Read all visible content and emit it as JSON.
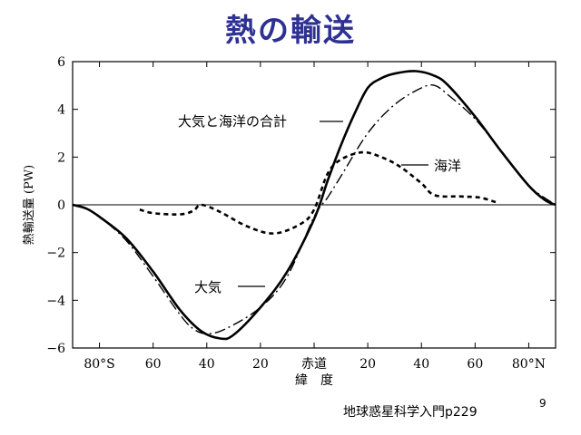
{
  "slide": {
    "title": "熱の輸送",
    "source": "地球惑星科学入門p229",
    "page_number": "9"
  },
  "chart_data": {
    "type": "line",
    "xlabel": "緯　度",
    "ylabel": "熱輸送量 (PW)",
    "xlim": [
      -90,
      90
    ],
    "ylim": [
      -6,
      6
    ],
    "x_ticks": [
      {
        "value": -80,
        "label": "80°S"
      },
      {
        "value": -60,
        "label": "60"
      },
      {
        "value": -40,
        "label": "40"
      },
      {
        "value": -20,
        "label": "20"
      },
      {
        "value": 0,
        "label": "赤道"
      },
      {
        "value": 20,
        "label": "20"
      },
      {
        "value": 40,
        "label": "40"
      },
      {
        "value": 60,
        "label": "60"
      },
      {
        "value": 80,
        "label": "80°N"
      }
    ],
    "y_ticks": [
      {
        "value": -6,
        "label": "−6"
      },
      {
        "value": -4,
        "label": "−4"
      },
      {
        "value": -2,
        "label": "−2"
      },
      {
        "value": 0,
        "label": "0"
      },
      {
        "value": 2,
        "label": "2"
      },
      {
        "value": 4,
        "label": "4"
      },
      {
        "value": 6,
        "label": "6"
      }
    ],
    "zero_line": true,
    "series": [
      {
        "name": "大気と海洋の合計",
        "style": "solid",
        "color": "#000000",
        "points": [
          [
            -90,
            0
          ],
          [
            -85,
            -0.15
          ],
          [
            -80,
            -0.5
          ],
          [
            -70,
            -1.4
          ],
          [
            -60,
            -2.8
          ],
          [
            -50,
            -4.4
          ],
          [
            -42,
            -5.3
          ],
          [
            -35,
            -5.6
          ],
          [
            -30,
            -5.45
          ],
          [
            -20,
            -4.3
          ],
          [
            -10,
            -2.8
          ],
          [
            0,
            -0.6
          ],
          [
            5,
            1.0
          ],
          [
            10,
            2.5
          ],
          [
            15,
            3.8
          ],
          [
            20,
            4.9
          ],
          [
            25,
            5.3
          ],
          [
            30,
            5.5
          ],
          [
            38,
            5.6
          ],
          [
            45,
            5.4
          ],
          [
            50,
            5.0
          ],
          [
            60,
            3.7
          ],
          [
            70,
            2.2
          ],
          [
            80,
            0.8
          ],
          [
            86,
            0.2
          ],
          [
            90,
            0
          ]
        ]
      },
      {
        "name": "大気",
        "style": "dashdot",
        "color": "#000000",
        "points": [
          [
            -90,
            0
          ],
          [
            -85,
            -0.15
          ],
          [
            -80,
            -0.5
          ],
          [
            -70,
            -1.5
          ],
          [
            -60,
            -3.0
          ],
          [
            -50,
            -4.6
          ],
          [
            -45,
            -5.2
          ],
          [
            -40,
            -5.4
          ],
          [
            -33,
            -5.2
          ],
          [
            -20,
            -4.3
          ],
          [
            -10,
            -3.0
          ],
          [
            0,
            -0.5
          ],
          [
            5,
            0.3
          ],
          [
            10,
            1.2
          ],
          [
            20,
            3.0
          ],
          [
            30,
            4.2
          ],
          [
            40,
            4.9
          ],
          [
            45,
            5.0
          ],
          [
            50,
            4.6
          ],
          [
            60,
            3.6
          ],
          [
            70,
            2.2
          ],
          [
            80,
            0.8
          ],
          [
            90,
            0
          ]
        ]
      },
      {
        "name": "海洋",
        "style": "dashed",
        "color": "#000000",
        "points": [
          [
            -65,
            -0.2
          ],
          [
            -60,
            -0.35
          ],
          [
            -50,
            -0.4
          ],
          [
            -45,
            -0.25
          ],
          [
            -42,
            0.0
          ],
          [
            -35,
            -0.3
          ],
          [
            -25,
            -0.9
          ],
          [
            -15,
            -1.2
          ],
          [
            -5,
            -0.8
          ],
          [
            0,
            -0.2
          ],
          [
            5,
            1.3
          ],
          [
            10,
            1.9
          ],
          [
            18,
            2.2
          ],
          [
            25,
            2.0
          ],
          [
            32,
            1.6
          ],
          [
            40,
            0.9
          ],
          [
            45,
            0.4
          ],
          [
            55,
            0.35
          ],
          [
            62,
            0.3
          ],
          [
            68,
            0.1
          ]
        ]
      }
    ],
    "annotations": [
      {
        "text": "大気と海洋の合計",
        "series": "大気と海洋の合計"
      },
      {
        "text": "海洋",
        "series": "海洋"
      },
      {
        "text": "大気",
        "series": "大気"
      }
    ]
  }
}
